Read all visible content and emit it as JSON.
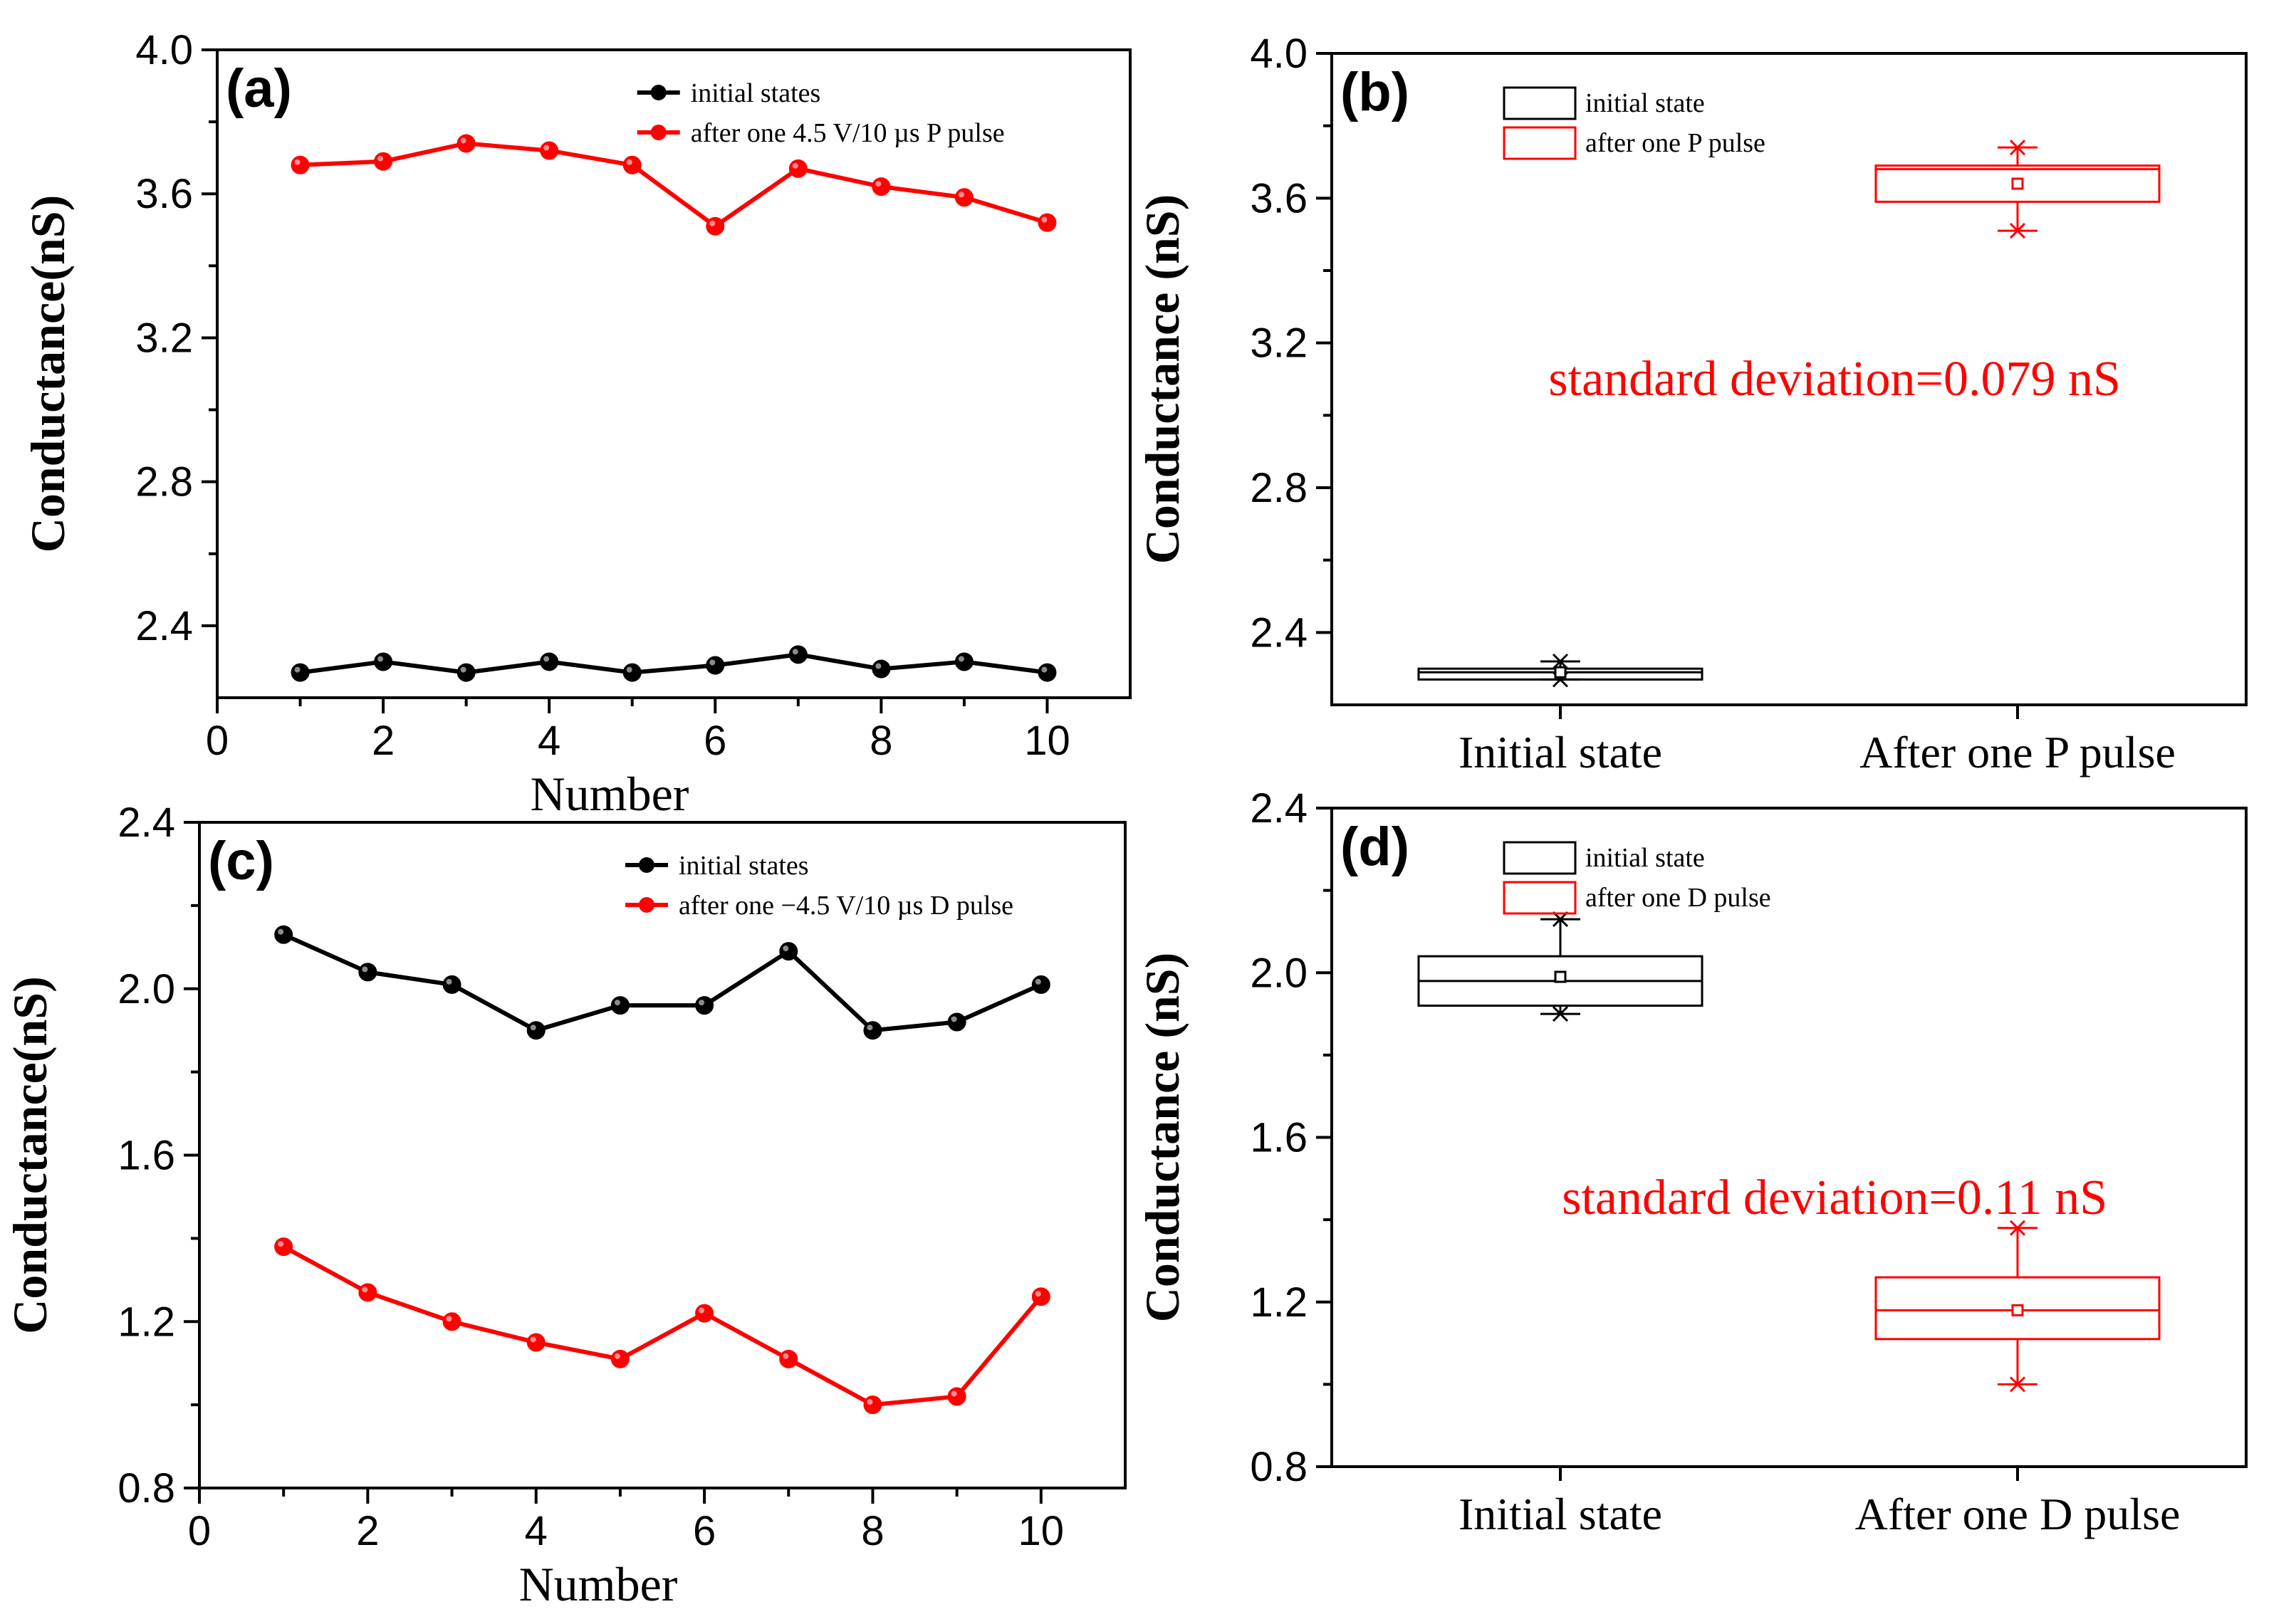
{
  "chart_data": [
    {
      "id": "a",
      "type": "line",
      "panel_label": "(a)",
      "title": "",
      "xlabel": "Number",
      "ylabel": "Conductance(nS)",
      "xlim": [
        0,
        11
      ],
      "ylim": [
        2.2,
        4.0
      ],
      "xticks": [
        0,
        2,
        4,
        6,
        8,
        10
      ],
      "xtick_labels": [
        "0",
        "2",
        "4",
        "6",
        "8",
        "10"
      ],
      "yticks": [
        2.4,
        2.8,
        3.2,
        3.6,
        4.0
      ],
      "ytick_labels": [
        "2.4",
        "2.8",
        "3.2",
        "3.6",
        "4.0"
      ],
      "legend_position": "top-right",
      "x": [
        1,
        2,
        3,
        4,
        5,
        6,
        7,
        8,
        9,
        10
      ],
      "series": [
        {
          "name": "initial states",
          "color": "#000000",
          "values": [
            2.27,
            2.3,
            2.27,
            2.3,
            2.27,
            2.29,
            2.32,
            2.28,
            2.3,
            2.27
          ]
        },
        {
          "name": "after  one 4.5 V/10 µs P pulse",
          "color": "#ff0000",
          "values": [
            3.68,
            3.69,
            3.74,
            3.72,
            3.68,
            3.51,
            3.67,
            3.62,
            3.59,
            3.52
          ]
        }
      ]
    },
    {
      "id": "b",
      "type": "box",
      "panel_label": "(b)",
      "title": "",
      "xlabel": "",
      "ylabel": "Conductance (nS)",
      "ylim": [
        2.2,
        4.0
      ],
      "yticks": [
        2.4,
        2.8,
        3.2,
        3.6,
        4.0
      ],
      "ytick_labels": [
        "2.4",
        "2.8",
        "3.2",
        "3.6",
        "4.0"
      ],
      "categories": [
        "Initial state",
        "After one P pulse"
      ],
      "legend_position": "top-left",
      "legend": [
        "initial state",
        "after one P pulse"
      ],
      "annotation": "standard deviation=0.079 nS",
      "annotation_color": "#ff0000",
      "boxes": [
        {
          "name": "initial state",
          "color": "#000000",
          "min": 2.27,
          "q1": 2.27,
          "median": 2.29,
          "q3": 2.3,
          "max": 2.32,
          "mean": 2.29
        },
        {
          "name": "after one P pulse",
          "color": "#ff0000",
          "min": 3.51,
          "q1": 3.59,
          "median": 3.68,
          "q3": 3.69,
          "max": 3.74,
          "mean": 3.64
        }
      ]
    },
    {
      "id": "c",
      "type": "line",
      "panel_label": "(c)",
      "title": "",
      "xlabel": "Number",
      "ylabel": "Conductance(nS)",
      "xlim": [
        0,
        11
      ],
      "ylim": [
        0.8,
        2.4
      ],
      "xticks": [
        0,
        2,
        4,
        6,
        8,
        10
      ],
      "xtick_labels": [
        "0",
        "2",
        "4",
        "6",
        "8",
        "10"
      ],
      "yticks": [
        0.8,
        1.2,
        1.6,
        2.0,
        2.4
      ],
      "ytick_labels": [
        "0.8",
        "1.2",
        "1.6",
        "2.0",
        "2.4"
      ],
      "legend_position": "top-right",
      "x": [
        1,
        2,
        3,
        4,
        5,
        6,
        7,
        8,
        9,
        10
      ],
      "series": [
        {
          "name": "initial states",
          "color": "#000000",
          "values": [
            2.13,
            2.04,
            2.01,
            1.9,
            1.96,
            1.96,
            2.09,
            1.9,
            1.92,
            2.01
          ]
        },
        {
          "name": "after  one −4.5 V/10 µs D pulse",
          "color": "#ff0000",
          "values": [
            1.38,
            1.27,
            1.2,
            1.15,
            1.11,
            1.22,
            1.11,
            1.0,
            1.02,
            1.26
          ]
        }
      ]
    },
    {
      "id": "d",
      "type": "box",
      "panel_label": "(d)",
      "title": "",
      "xlabel": "",
      "ylabel": "Conductance (nS)",
      "ylim": [
        0.8,
        2.4
      ],
      "yticks": [
        0.8,
        1.2,
        1.6,
        2.0,
        2.4
      ],
      "ytick_labels": [
        "0.8",
        "1.2",
        "1.6",
        "2.0",
        "2.4"
      ],
      "categories": [
        "Initial state",
        "After one D pulse"
      ],
      "legend_position": "top-left",
      "legend": [
        "initial state",
        "after one D pulse"
      ],
      "annotation": "standard deviation=0.11 nS",
      "annotation_color": "#ff0000",
      "boxes": [
        {
          "name": "initial state",
          "color": "#000000",
          "min": 1.9,
          "q1": 1.92,
          "median": 1.98,
          "q3": 2.04,
          "max": 2.13,
          "mean": 1.99
        },
        {
          "name": "after one D pulse",
          "color": "#ff0000",
          "min": 1.0,
          "q1": 1.11,
          "median": 1.18,
          "q3": 1.26,
          "max": 1.38,
          "mean": 1.18
        }
      ]
    }
  ]
}
